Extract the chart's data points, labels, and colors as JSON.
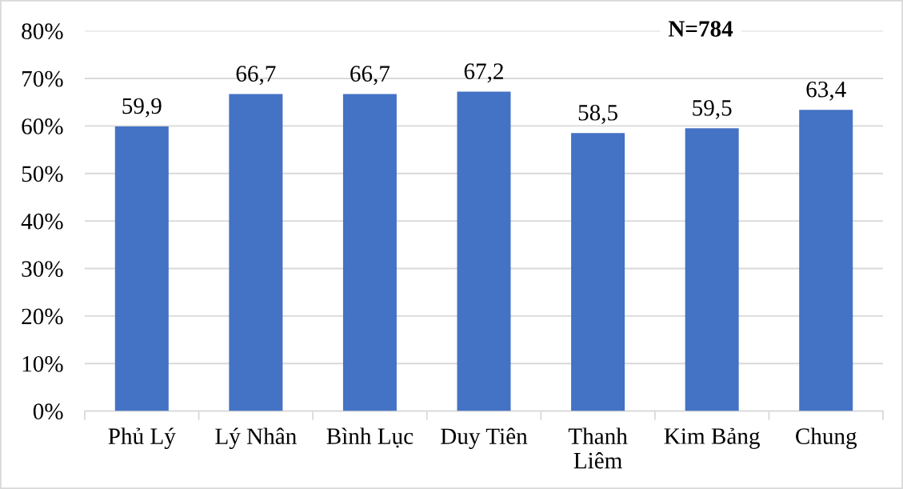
{
  "chart_data": {
    "type": "bar",
    "categories": [
      "Phủ Lý",
      "Lý Nhân",
      "Bình Lục",
      "Duy Tiên",
      "Thanh\nLiêm",
      "Kim Bảng",
      "Chung"
    ],
    "values": [
      59.9,
      66.7,
      66.7,
      67.2,
      58.5,
      59.5,
      63.4
    ],
    "value_labels": [
      "59,9",
      "66,7",
      "66,7",
      "67,2",
      "58,5",
      "59,5",
      "63,4"
    ],
    "color": "#4472c4",
    "ylim": [
      0,
      80
    ],
    "yticks": [
      {
        "value": 0,
        "label": "0%"
      },
      {
        "value": 10,
        "label": "10%"
      },
      {
        "value": 20,
        "label": "20%"
      },
      {
        "value": 30,
        "label": "30%"
      },
      {
        "value": 40,
        "label": "40%"
      },
      {
        "value": 50,
        "label": "50%"
      },
      {
        "value": 60,
        "label": "60%"
      },
      {
        "value": 70,
        "label": "70%"
      },
      {
        "value": 80,
        "label": "80%"
      }
    ],
    "grid": "y",
    "annotations": [
      "N=784"
    ]
  }
}
